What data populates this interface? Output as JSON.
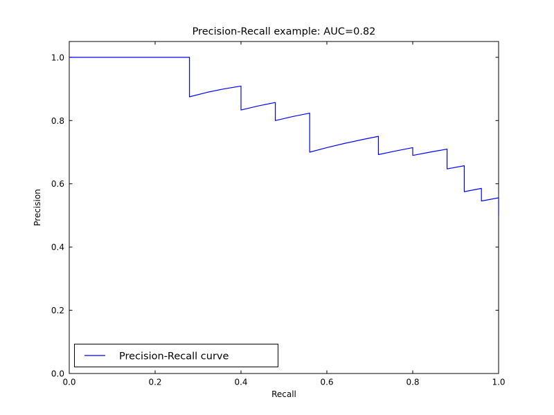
{
  "figure": {
    "background": "#ffffff",
    "frame_color": "#000000",
    "text_color": "#000000"
  },
  "chart_data": {
    "type": "line",
    "title": "Precision-Recall example: AUC=0.82",
    "xlabel": "Recall",
    "ylabel": "Precision",
    "auc": 0.82,
    "xlim": [
      0.0,
      1.0
    ],
    "ylim": [
      0.0,
      1.05
    ],
    "xticks": [
      0.0,
      0.2,
      0.4,
      0.6,
      0.8,
      1.0
    ],
    "xtick_labels": [
      "0.0",
      "0.2",
      "0.4",
      "0.6",
      "0.8",
      "1.0"
    ],
    "yticks": [
      0.0,
      0.2,
      0.4,
      0.6,
      0.8,
      1.0
    ],
    "ytick_labels": [
      "0.0",
      "0.2",
      "0.4",
      "0.6",
      "0.8",
      "1.0"
    ],
    "grid": false,
    "legend": {
      "position": "lower-left",
      "entries": [
        {
          "label": "Precision-Recall curve",
          "color": "#0000ff",
          "style": "solid"
        }
      ]
    },
    "series": [
      {
        "name": "Precision-Recall curve",
        "color": "#0000ff",
        "x": [
          0.0,
          0.28,
          0.28,
          0.32,
          0.36,
          0.4,
          0.4,
          0.44,
          0.48,
          0.48,
          0.52,
          0.56,
          0.56,
          0.6,
          0.64,
          0.68,
          0.72,
          0.72,
          0.76,
          0.8,
          0.8,
          0.84,
          0.88,
          0.88,
          0.92,
          0.92,
          0.96,
          0.96,
          1.0,
          1.0
        ],
        "y": [
          1.0,
          1.0,
          0.875,
          0.8889,
          0.9,
          0.9091,
          0.8333,
          0.8462,
          0.8571,
          0.8,
          0.8125,
          0.8235,
          0.7,
          0.7143,
          0.7273,
          0.7391,
          0.75,
          0.6923,
          0.7037,
          0.7143,
          0.6897,
          0.7,
          0.7097,
          0.6471,
          0.6571,
          0.575,
          0.5854,
          0.5455,
          0.5556,
          0.5
        ]
      }
    ]
  }
}
